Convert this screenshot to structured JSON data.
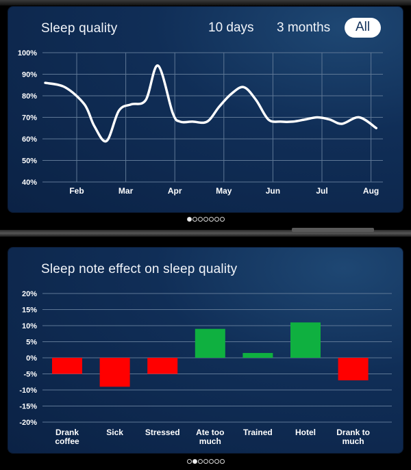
{
  "top_panel": {
    "title": "Sleep quality",
    "range_tabs": [
      {
        "label": "10 days",
        "active": false
      },
      {
        "label": "3 months",
        "active": false
      },
      {
        "label": "All",
        "active": true
      }
    ],
    "page_dots": {
      "count": 7,
      "active": 0
    }
  },
  "bottom_panel": {
    "title": "Sleep note effect on sleep quality",
    "page_dots": {
      "count": 7,
      "active": 1
    }
  },
  "colors": {
    "positive": "#0fb040",
    "negative": "#ff0000",
    "line": "#ffffff",
    "grid": "#5f7896"
  },
  "chart_data": [
    {
      "type": "line",
      "title": "Sleep quality",
      "x_tick_labels": [
        "Feb",
        "Mar",
        "Apr",
        "May",
        "Jun",
        "Jul",
        "Aug"
      ],
      "y_tick_labels": [
        "100%",
        "90%",
        "80%",
        "70%",
        "60%",
        "50%",
        "40%"
      ],
      "ylim": [
        40,
        100
      ],
      "xlim": [
        0,
        6.9
      ],
      "grid": true,
      "x": [
        0,
        0.4,
        0.8,
        1.0,
        1.25,
        1.5,
        1.75,
        2.05,
        2.3,
        2.6,
        2.75,
        3.0,
        3.3,
        3.55,
        3.8,
        4.05,
        4.3,
        4.55,
        4.8,
        5.05,
        5.3,
        5.55,
        5.8,
        6.05,
        6.4,
        6.75
      ],
      "series": [
        {
          "values": [
            86,
            84,
            76,
            66,
            59,
            73,
            76,
            78,
            94,
            72,
            68,
            68,
            68,
            75,
            81,
            84,
            78,
            69,
            68,
            68,
            69,
            70,
            69,
            67,
            70,
            65
          ]
        }
      ]
    },
    {
      "type": "bar",
      "title": "Sleep note effect on sleep quality",
      "categories": [
        "Drank coffee",
        "Sick",
        "Stressed",
        "Ate too much",
        "Trained",
        "Hotel",
        "Drank to much"
      ],
      "values": [
        -5,
        -9,
        -5,
        9,
        1.5,
        11,
        -7
      ],
      "y_tick_labels": [
        "20%",
        "15%",
        "10%",
        "5%",
        "0%",
        "-5%",
        "-10%",
        "-15%",
        "-20%"
      ],
      "ylim": [
        -20,
        20
      ],
      "grid": true
    }
  ]
}
